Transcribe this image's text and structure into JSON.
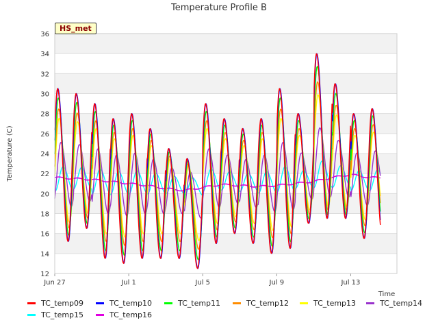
{
  "chart_data": {
    "type": "line",
    "title": "Temperature Profile B",
    "xlabel": "Time",
    "ylabel": "Temperature (C)",
    "station_label": "HS_met",
    "x_start": "Jun 27",
    "x_end": "Jul 14",
    "xticks": [
      "Jun 27",
      "Jul 1",
      "Jul 5",
      "Jul 9",
      "Jul 13"
    ],
    "ylim": [
      12,
      36
    ],
    "yticks": [
      12,
      14,
      16,
      18,
      20,
      22,
      24,
      26,
      28,
      30,
      32,
      34,
      36
    ],
    "grid": "horizontal bands",
    "legend_position": "bottom",
    "daily_peaks": [
      {
        "date": "Jun 27",
        "peak": 30.5,
        "low": 15.2
      },
      {
        "date": "Jun 28",
        "peak": 30.0,
        "low": 16.5
      },
      {
        "date": "Jun 29",
        "peak": 29.0,
        "low": 13.5
      },
      {
        "date": "Jun 30",
        "peak": 27.5,
        "low": 13.0
      },
      {
        "date": "Jul 1",
        "peak": 28.0,
        "low": 13.5
      },
      {
        "date": "Jul 2",
        "peak": 26.5,
        "low": 13.5
      },
      {
        "date": "Jul 3",
        "peak": 24.5,
        "low": 13.5
      },
      {
        "date": "Jul 4",
        "peak": 23.5,
        "low": 12.5
      },
      {
        "date": "Jul 5",
        "peak": 29.0,
        "low": 15.0
      },
      {
        "date": "Jul 6",
        "peak": 27.5,
        "low": 16.0
      },
      {
        "date": "Jul 7",
        "peak": 26.5,
        "low": 15.0
      },
      {
        "date": "Jul 8",
        "peak": 27.5,
        "low": 14.0
      },
      {
        "date": "Jul 9",
        "peak": 30.5,
        "low": 14.5
      },
      {
        "date": "Jul 10",
        "peak": 28.0,
        "low": 17.0
      },
      {
        "date": "Jul 11",
        "peak": 34.0,
        "low": 17.5
      },
      {
        "date": "Jul 12",
        "peak": 31.0,
        "low": 17.5
      },
      {
        "date": "Jul 13",
        "peak": 28.0,
        "low": 15.5
      },
      {
        "date": "Jul 14",
        "peak": 28.5,
        "low": 15.5
      }
    ],
    "series": [
      {
        "name": "TC_temp09",
        "color": "#ff0000",
        "amp": 1.0,
        "shift": 0.0,
        "kind": "diurnal"
      },
      {
        "name": "TC_temp10",
        "color": "#0000ff",
        "amp": 1.0,
        "shift": 0.02,
        "kind": "diurnal"
      },
      {
        "name": "TC_temp11",
        "color": "#00ff00",
        "amp": 0.9,
        "shift": 0.04,
        "kind": "diurnal"
      },
      {
        "name": "TC_temp12",
        "color": "#ff8c00",
        "amp": 0.78,
        "shift": 0.06,
        "kind": "diurnal"
      },
      {
        "name": "TC_temp13",
        "color": "#ffff00",
        "amp": 0.68,
        "shift": 0.08,
        "kind": "diurnal"
      },
      {
        "name": "TC_temp14",
        "color": "#9932cc",
        "amp": 0.42,
        "shift": 0.18,
        "kind": "diurnal"
      },
      {
        "name": "TC_temp15",
        "color": "#00ffff",
        "amp": 0.16,
        "shift": 0.3,
        "kind": "diurnal"
      },
      {
        "name": "TC_temp16",
        "color": "#e000e0",
        "kind": "deep",
        "values": [
          21.6,
          21.5,
          21.4,
          21.2,
          21.0,
          20.8,
          20.5,
          20.3,
          20.6,
          20.9,
          20.8,
          20.7,
          20.8,
          21.0,
          21.2,
          21.6,
          21.9,
          21.6
        ]
      }
    ]
  }
}
